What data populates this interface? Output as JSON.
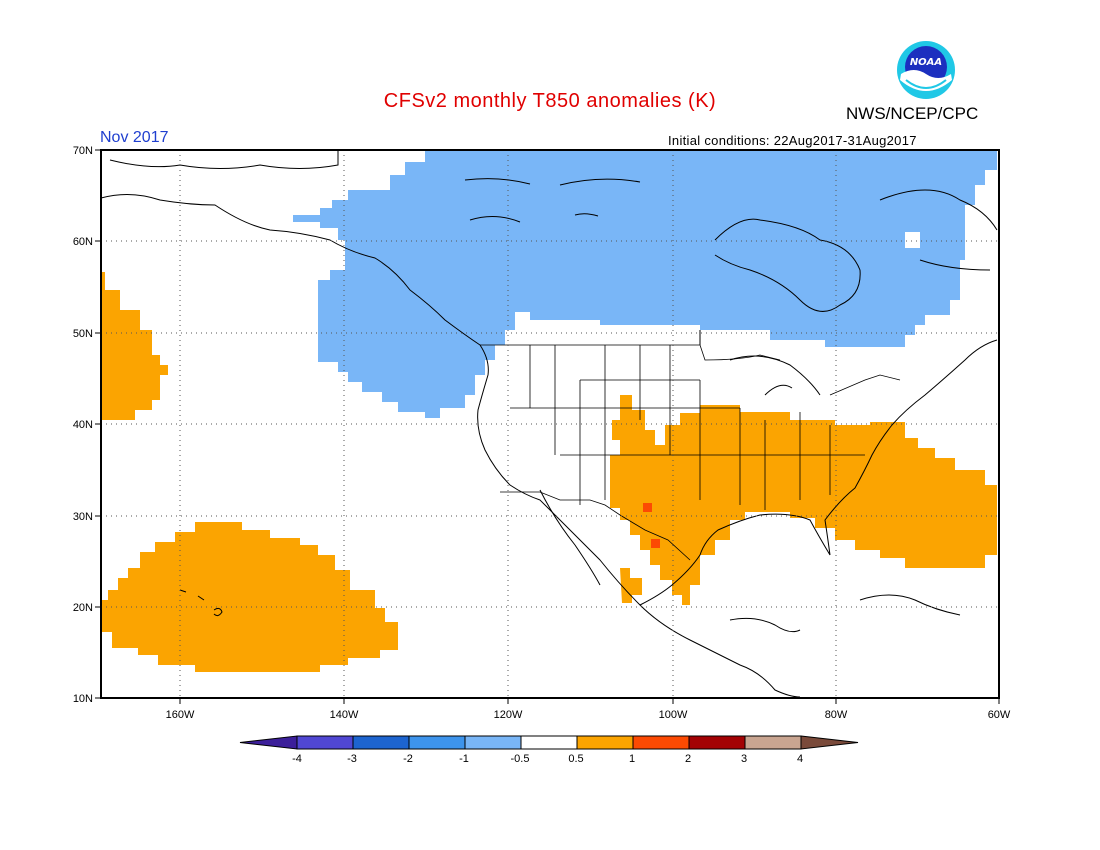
{
  "header": {
    "title": "CFSv2 monthly T850 anomalies (K)",
    "agency": "NWS/NCEP/CPC",
    "month": "Nov 2017",
    "initial_conditions": "Initial conditions: 22Aug2017-31Aug2017",
    "logo_text": "NOAA"
  },
  "map": {
    "projection": "lat-lon",
    "lon_range": [
      -172,
      -60
    ],
    "lat_range": [
      10,
      70
    ],
    "lat_labels": [
      "70N",
      "60N",
      "50N",
      "40N",
      "30N",
      "20N",
      "10N"
    ],
    "lon_labels": [
      "160W",
      "140W",
      "120W",
      "100W",
      "80W",
      "60W"
    ],
    "grid": true,
    "anomaly_regions": [
      {
        "category": "-1 to -0.5",
        "color": "#79b6f7",
        "area": "Canada / Alaska / NE Pacific"
      },
      {
        "category": "0.5 to 1",
        "color": "#fba401",
        "area": "South-central & eastern U.S. / W Atlantic"
      },
      {
        "category": "0.5 to 1",
        "color": "#fba401",
        "area": "NE Pacific near 50N 170W"
      },
      {
        "category": "0.5 to 1",
        "color": "#fba401",
        "area": "Central Pacific near Hawaii"
      },
      {
        "category": "1 to 2",
        "color": "#fc4a03",
        "area": "Northern Mexico spots"
      }
    ]
  },
  "colorbar": {
    "tick_labels": [
      "-4",
      "-3",
      "-2",
      "-1",
      "-0.5",
      "0.5",
      "1",
      "2",
      "3",
      "4"
    ],
    "colors": [
      "#3c1f9a",
      "#5047d3",
      "#1d64cf",
      "#3d94ec",
      "#79b6f7",
      "#ffffff",
      "#fba401",
      "#fc4a03",
      "#a30204",
      "#c9a591",
      "#7a4a3a"
    ]
  }
}
